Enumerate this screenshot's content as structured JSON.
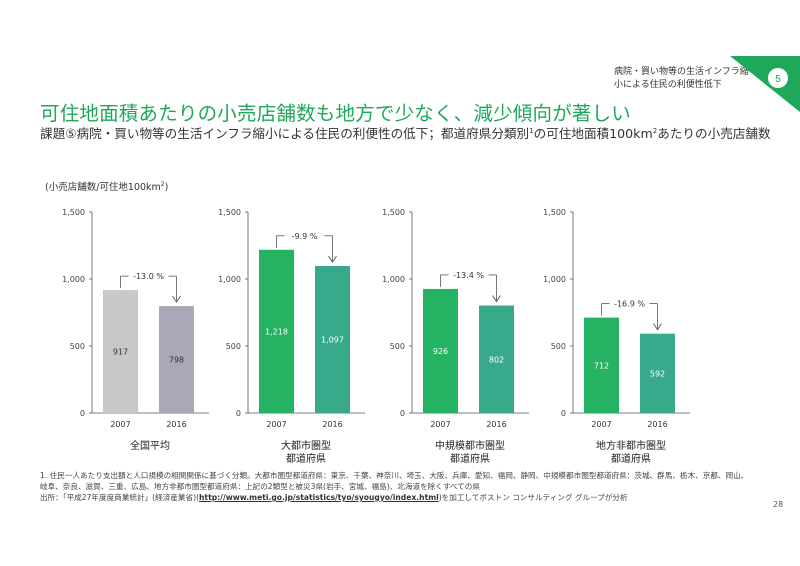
{
  "header": {
    "section_note": "病院・買い物等の生活インフラ縮小による住民の利便性低下",
    "section_number": "5"
  },
  "title": "可住地面積あたりの小売店舗数も地方で少なく、減少傾向が著しい",
  "subtitle": {
    "main": "課題⑤病院・買い物等の生活インフラ縮小による住民の利便性の低下；都道府県分類別",
    "sup1": "1",
    "mid": "の可住地面積100km",
    "sup2": "2",
    "end": "あたりの小売店舗数"
  },
  "unit_label": {
    "main": "(小売店舗数/可住地100km",
    "sup": "2",
    "end": ")"
  },
  "colors": {
    "accent": "#1fa85a",
    "grey_2007": "#c8c8c8",
    "grey_2016": "#a8a8b6",
    "green_2007": "#26b263",
    "green_2016": "#38a98a"
  },
  "chart_data": [
    {
      "type": "bar",
      "title": "全国平均",
      "categories": [
        "2007",
        "2016"
      ],
      "values": [
        917,
        798
      ],
      "ylim": [
        0,
        1500
      ],
      "yticks": [
        "0",
        "500",
        "1,000",
        "1,500"
      ],
      "value_labels": [
        "917",
        "798"
      ],
      "change_label": "-13.0 %"
    },
    {
      "type": "bar",
      "title": "大都市圏型都道府県",
      "title_lines": [
        "大都市圏型",
        "都道府県"
      ],
      "categories": [
        "2007",
        "2016"
      ],
      "values": [
        1218,
        1097
      ],
      "ylim": [
        0,
        1500
      ],
      "yticks": [
        "0",
        "500",
        "1,000",
        "1,500"
      ],
      "value_labels": [
        "1,218",
        "1,097"
      ],
      "change_label": "-9.9 %"
    },
    {
      "type": "bar",
      "title": "中規模都市圏型都道府県",
      "title_lines": [
        "中規模都市圏型",
        "都道府県"
      ],
      "categories": [
        "2007",
        "2016"
      ],
      "values": [
        926,
        802
      ],
      "ylim": [
        0,
        1500
      ],
      "yticks": [
        "0",
        "500",
        "1,000",
        "1,500"
      ],
      "value_labels": [
        "926",
        "802"
      ],
      "change_label": "-13.4 %"
    },
    {
      "type": "bar",
      "title": "地方非都市圏型都道府県",
      "title_lines": [
        "地方非都市圏型",
        "都道府県"
      ],
      "categories": [
        "2007",
        "2016"
      ],
      "values": [
        712,
        592
      ],
      "ylim": [
        0,
        1500
      ],
      "yticks": [
        "0",
        "500",
        "1,000",
        "1,500"
      ],
      "value_labels": [
        "712",
        "592"
      ],
      "change_label": "-16.9 %"
    }
  ],
  "footnotes": {
    "note1_line1": "1. 住民一人あたり支出額と人口規模の相関関係に基づく分類。大都市圏型都道府県：東京、千葉、神奈川、埼玉、大阪、兵庫、愛知、福岡、静岡、中規模都市圏型都道府県：茨城、群馬、栃木、京都、岡山、",
    "note1_line2": "岐阜、奈良、滋賀、三重、広島、地方非都市圏型都道府県：上記の2類型と被災3県(岩手、宮城、福島)、北海道を除くすべての県",
    "source_prefix": "出所：「平成27年度度商業統計」(経済産業省)(",
    "source_link": "http://www.meti.go.jp/statistics/tyo/syougyo/index.html",
    "source_suffix": ")を加工してボストン コンサルティング グループが分析"
  },
  "page_number": "28"
}
